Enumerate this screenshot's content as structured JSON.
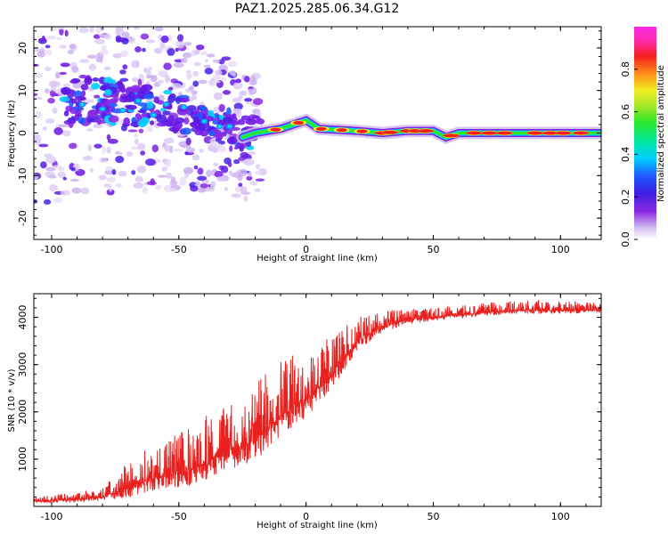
{
  "title": "PAZ1.2025.285.06.34.G12",
  "colors": {
    "snr_line": "#e8201e",
    "axes": "#000000",
    "background": "#ffffff"
  },
  "chart_data": [
    {
      "type": "heatmap",
      "name": "spectrogram",
      "xlabel": "Height of straight line (km)",
      "ylabel": "Frequency (Hz)",
      "xlim": [
        -107,
        116
      ],
      "ylim": [
        -25,
        25
      ],
      "x_ticks": [
        -100,
        -50,
        0,
        50,
        100
      ],
      "y_ticks": [
        -20,
        -10,
        0,
        10,
        20
      ],
      "colorbar": {
        "label": "Normalized spectral amplitude",
        "range": [
          0,
          1
        ],
        "ticks": [
          "0.0",
          "0.2",
          "0.4",
          "0.6",
          "0.8"
        ],
        "tick_values": [
          0.0,
          0.2,
          0.4,
          0.6,
          0.8
        ],
        "colormap": "gist_ncar-like (white, purple, blue, cyan, green, yellow, red, magenta)"
      },
      "ridge": [
        {
          "x": -90,
          "f": 8
        },
        {
          "x": -75,
          "f": 7
        },
        {
          "x": -60,
          "f": 6
        },
        {
          "x": -45,
          "f": 4
        },
        {
          "x": -30,
          "f": 2
        },
        {
          "x": -25,
          "f": -1
        },
        {
          "x": -20,
          "f": 0
        },
        {
          "x": -10,
          "f": 1
        },
        {
          "x": -5,
          "f": 2
        },
        {
          "x": 0,
          "f": 3
        },
        {
          "x": 5,
          "f": 1
        },
        {
          "x": 20,
          "f": 0.5
        },
        {
          "x": 30,
          "f": 0
        },
        {
          "x": 40,
          "f": 0.5
        },
        {
          "x": 50,
          "f": 0.5
        },
        {
          "x": 55,
          "f": -1
        },
        {
          "x": 60,
          "f": 0
        },
        {
          "x": 80,
          "f": 0
        },
        {
          "x": 100,
          "f": 0
        },
        {
          "x": 116,
          "f": 0
        }
      ]
    },
    {
      "type": "line",
      "name": "snr",
      "xlabel": "Height of straight line (km)",
      "ylabel": "SNR (10 * v/v)",
      "xlim": [
        -107,
        116
      ],
      "ylim": [
        0,
        4500
      ],
      "x_ticks": [
        -100,
        -50,
        0,
        50,
        100
      ],
      "y_ticks": [
        1000,
        2000,
        3000,
        4000
      ],
      "envelope": [
        {
          "x": -107,
          "y": 100
        },
        {
          "x": -90,
          "y": 150
        },
        {
          "x": -80,
          "y": 200
        },
        {
          "x": -70,
          "y": 400
        },
        {
          "x": -60,
          "y": 600
        },
        {
          "x": -50,
          "y": 700
        },
        {
          "x": -40,
          "y": 900
        },
        {
          "x": -30,
          "y": 1200
        },
        {
          "x": -20,
          "y": 1400
        },
        {
          "x": -10,
          "y": 1900
        },
        {
          "x": 0,
          "y": 2300
        },
        {
          "x": 10,
          "y": 2800
        },
        {
          "x": 20,
          "y": 3500
        },
        {
          "x": 30,
          "y": 3800
        },
        {
          "x": 40,
          "y": 3950
        },
        {
          "x": 50,
          "y": 4000
        },
        {
          "x": 60,
          "y": 4050
        },
        {
          "x": 70,
          "y": 4100
        },
        {
          "x": 80,
          "y": 4150
        },
        {
          "x": 90,
          "y": 4150
        },
        {
          "x": 100,
          "y": 4150
        },
        {
          "x": 116,
          "y": 4150
        }
      ],
      "noise_amplitude": [
        {
          "x": -107,
          "a": 60
        },
        {
          "x": -80,
          "a": 120
        },
        {
          "x": -70,
          "a": 350
        },
        {
          "x": -50,
          "a": 550
        },
        {
          "x": -30,
          "a": 700
        },
        {
          "x": -10,
          "a": 800
        },
        {
          "x": 0,
          "a": 700
        },
        {
          "x": 15,
          "a": 450
        },
        {
          "x": 30,
          "a": 200
        },
        {
          "x": 50,
          "a": 120
        },
        {
          "x": 100,
          "a": 130
        },
        {
          "x": 116,
          "a": 90
        }
      ]
    }
  ]
}
